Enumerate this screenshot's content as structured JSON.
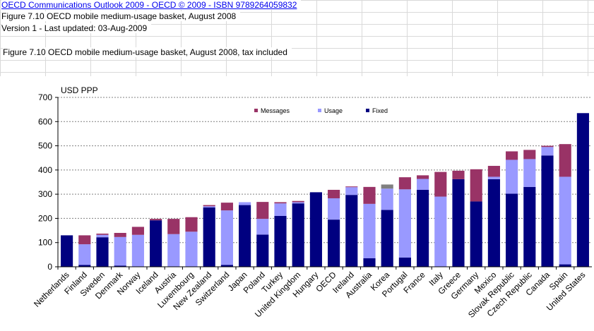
{
  "header": {
    "link": "OECD Communications Outlook 2009 - OECD © 2009 - ISBN 9789264059832",
    "figure_title": "Figure 7.10 OECD mobile medium-usage basket, August 2008",
    "version": "Version 1 - Last updated: 03-Aug-2009",
    "subtitle": "Figure 7.10 OECD mobile medium-usage basket, August 2008, tax included"
  },
  "chart_data": {
    "type": "bar",
    "stacked": true,
    "ylabel": "USD PPP",
    "ylim": [
      0,
      700
    ],
    "yticks": [
      0,
      100,
      200,
      300,
      400,
      500,
      600,
      700
    ],
    "grid": true,
    "legend_position": "top",
    "legend": [
      "Messages",
      "Usage",
      "Fixed"
    ],
    "categories": [
      "Netherlands",
      "Finland",
      "Sweden",
      "Denmark",
      "Norway",
      "Iceland",
      "Austria",
      "Luxembourg",
      "New Zealand",
      "Switzerland",
      "Japan",
      "Poland",
      "Turkey",
      "United Kingdom",
      "Hungary",
      "OECD",
      "Ireland",
      "Australia",
      "Korea",
      "Portugal",
      "France",
      "Italy",
      "Greece",
      "Germany",
      "Mexico",
      "Slovak Republic",
      "Czech Republic",
      "Canada",
      "Spain",
      "United States"
    ],
    "series": [
      {
        "name": "Fixed",
        "color": "#000080",
        "values": [
          130,
          8,
          122,
          5,
          0,
          192,
          0,
          0,
          245,
          8,
          255,
          133,
          210,
          262,
          308,
          195,
          297,
          35,
          235,
          38,
          318,
          0,
          362,
          270,
          362,
          302,
          330,
          460,
          10,
          635
        ]
      },
      {
        "name": "Usage",
        "color": "#9999ff",
        "values": [
          0,
          85,
          10,
          118,
          132,
          0,
          135,
          145,
          5,
          225,
          12,
          65,
          52,
          5,
          0,
          88,
          32,
          225,
          88,
          282,
          45,
          290,
          0,
          0,
          10,
          140,
          115,
          35,
          362,
          0
        ]
      },
      {
        "name": "Messages",
        "color": "#993366",
        "values": [
          0,
          37,
          5,
          17,
          33,
          6,
          63,
          60,
          5,
          32,
          0,
          70,
          5,
          5,
          0,
          35,
          3,
          70,
          0,
          50,
          15,
          102,
          35,
          133,
          45,
          35,
          38,
          5,
          135,
          0
        ]
      },
      {
        "name": "",
        "color": "#808080",
        "values": [
          0,
          0,
          0,
          0,
          0,
          0,
          0,
          0,
          0,
          0,
          0,
          0,
          0,
          0,
          0,
          0,
          0,
          0,
          17,
          0,
          0,
          0,
          0,
          0,
          0,
          0,
          0,
          0,
          0,
          0
        ]
      }
    ]
  }
}
